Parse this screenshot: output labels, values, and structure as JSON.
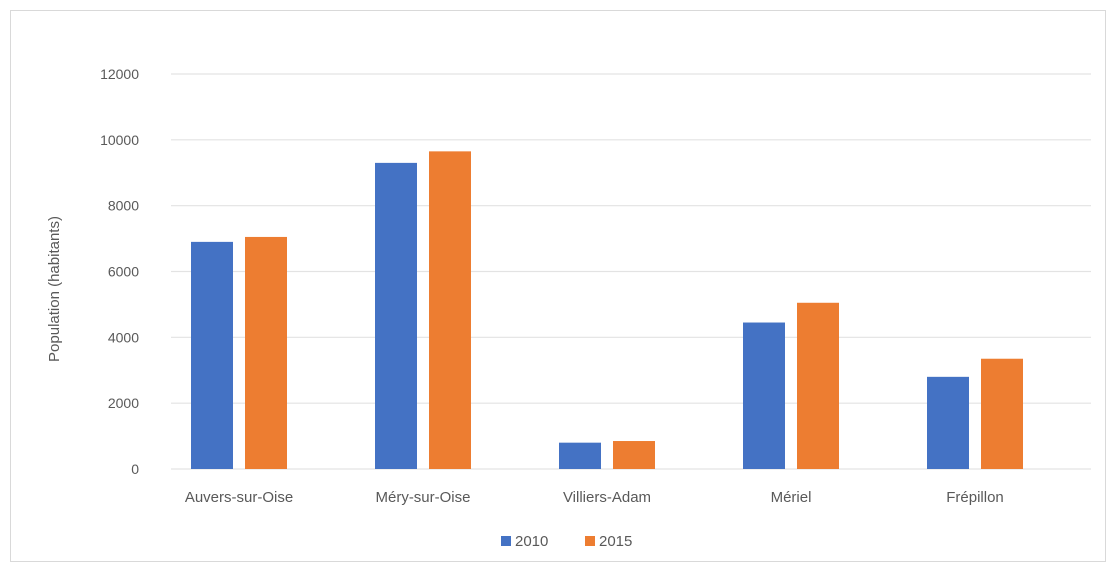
{
  "chart_data": {
    "type": "bar",
    "title": "",
    "xlabel": "",
    "ylabel": "Population (habitants)",
    "ylim": [
      0,
      12000
    ],
    "yticks": [
      0,
      2000,
      4000,
      6000,
      8000,
      10000,
      12000
    ],
    "grid": true,
    "legend_position": "bottom",
    "categories": [
      "Auvers-sur-Oise",
      "Méry-sur-Oise",
      "Villiers-Adam",
      "Mériel",
      "Frépillon"
    ],
    "series": [
      {
        "name": "2010",
        "color": "#4472c4",
        "values": [
          6900,
          9300,
          800,
          4450,
          2800
        ]
      },
      {
        "name": "2015",
        "color": "#ed7d31",
        "values": [
          7050,
          9650,
          850,
          5050,
          3350
        ]
      }
    ]
  }
}
